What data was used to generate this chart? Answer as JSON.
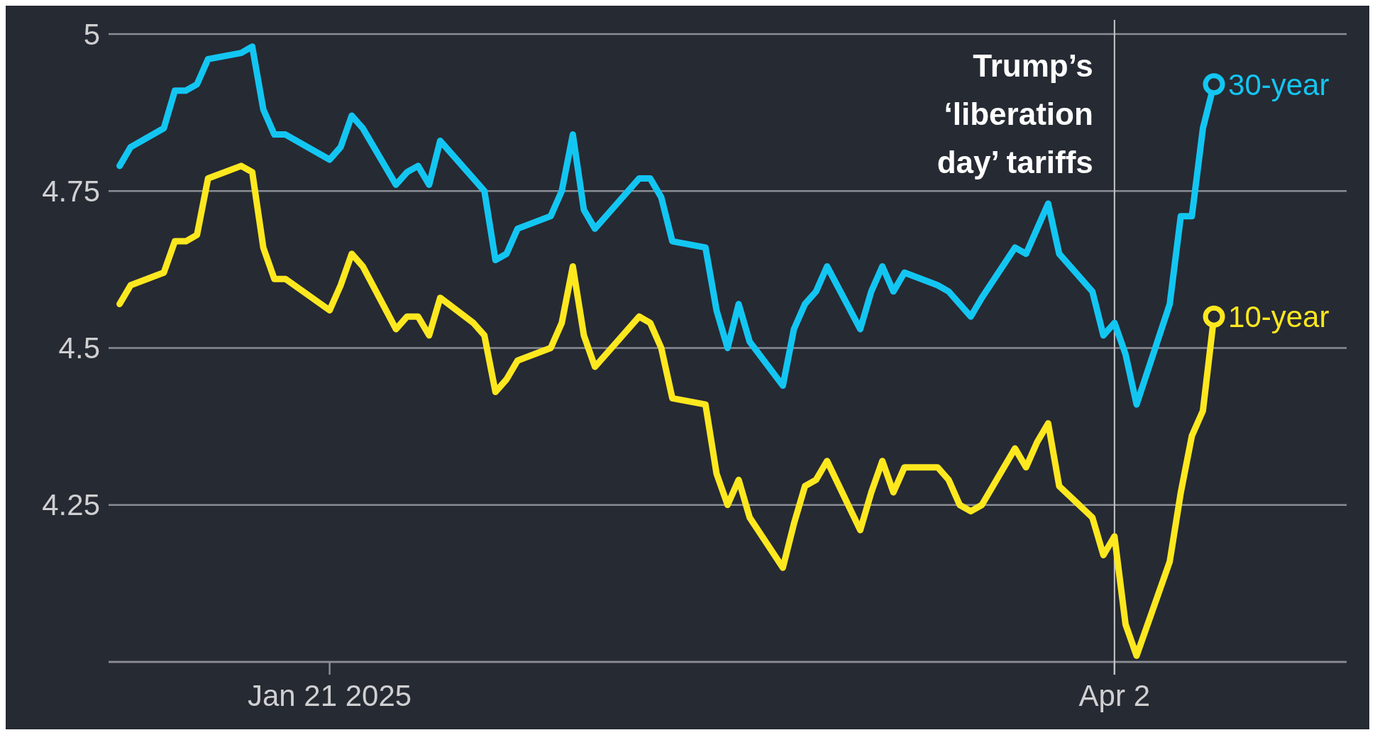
{
  "chart_data": {
    "type": "line",
    "x": [
      "2025-01-02",
      "2025-01-03",
      "2025-01-06",
      "2025-01-07",
      "2025-01-08",
      "2025-01-09",
      "2025-01-10",
      "2025-01-13",
      "2025-01-14",
      "2025-01-15",
      "2025-01-16",
      "2025-01-17",
      "2025-01-21",
      "2025-01-22",
      "2025-01-23",
      "2025-01-24",
      "2025-01-27",
      "2025-01-28",
      "2025-01-29",
      "2025-01-30",
      "2025-01-31",
      "2025-02-03",
      "2025-02-04",
      "2025-02-05",
      "2025-02-06",
      "2025-02-07",
      "2025-02-10",
      "2025-02-11",
      "2025-02-12",
      "2025-02-13",
      "2025-02-14",
      "2025-02-18",
      "2025-02-19",
      "2025-02-20",
      "2025-02-21",
      "2025-02-24",
      "2025-02-25",
      "2025-02-26",
      "2025-02-27",
      "2025-02-28",
      "2025-03-03",
      "2025-03-04",
      "2025-03-05",
      "2025-03-06",
      "2025-03-07",
      "2025-03-10",
      "2025-03-11",
      "2025-03-12",
      "2025-03-13",
      "2025-03-14",
      "2025-03-17",
      "2025-03-18",
      "2025-03-19",
      "2025-03-20",
      "2025-03-21",
      "2025-03-24",
      "2025-03-25",
      "2025-03-26",
      "2025-03-27",
      "2025-03-28",
      "2025-03-31",
      "2025-04-01",
      "2025-04-02",
      "2025-04-03",
      "2025-04-04",
      "2025-04-07",
      "2025-04-08",
      "2025-04-09",
      "2025-04-10",
      "2025-04-11"
    ],
    "series": [
      {
        "name": "30-year",
        "color": "#13c6f2",
        "values": [
          4.79,
          4.82,
          4.85,
          4.91,
          4.91,
          4.92,
          4.96,
          4.97,
          4.98,
          4.88,
          4.84,
          4.84,
          4.8,
          4.82,
          4.87,
          4.85,
          4.76,
          4.78,
          4.79,
          4.76,
          4.83,
          4.77,
          4.75,
          4.64,
          4.65,
          4.69,
          4.71,
          4.75,
          4.84,
          4.72,
          4.69,
          4.77,
          4.77,
          4.74,
          4.67,
          4.66,
          4.56,
          4.5,
          4.57,
          4.51,
          4.44,
          4.53,
          4.57,
          4.59,
          4.63,
          4.53,
          4.59,
          4.63,
          4.59,
          4.62,
          4.6,
          4.59,
          4.57,
          4.55,
          4.58,
          4.66,
          4.65,
          4.69,
          4.73,
          4.65,
          4.59,
          4.52,
          4.54,
          4.49,
          4.41,
          4.57,
          4.71,
          4.71,
          4.85,
          4.92
        ]
      },
      {
        "name": "10-year",
        "color": "#fde81f",
        "values": [
          4.57,
          4.6,
          4.62,
          4.67,
          4.67,
          4.68,
          4.77,
          4.79,
          4.78,
          4.66,
          4.61,
          4.61,
          4.56,
          4.6,
          4.65,
          4.63,
          4.53,
          4.55,
          4.55,
          4.52,
          4.58,
          4.54,
          4.52,
          4.43,
          4.45,
          4.48,
          4.5,
          4.54,
          4.63,
          4.52,
          4.47,
          4.55,
          4.54,
          4.5,
          4.42,
          4.41,
          4.3,
          4.25,
          4.29,
          4.23,
          4.15,
          4.22,
          4.28,
          4.29,
          4.32,
          4.21,
          4.27,
          4.32,
          4.27,
          4.31,
          4.31,
          4.29,
          4.25,
          4.24,
          4.25,
          4.34,
          4.31,
          4.35,
          4.38,
          4.28,
          4.23,
          4.17,
          4.2,
          4.06,
          4.01,
          4.16,
          4.27,
          4.36,
          4.4,
          4.55
        ]
      }
    ],
    "xlim": [
      "2025-01-01",
      "2025-04-23"
    ],
    "xticks": [
      {
        "value": "2025-01-21",
        "label": "Jan 21 2025"
      },
      {
        "value": "2025-04-02",
        "label": "Apr 2"
      }
    ],
    "ylim": [
      4,
      5
    ],
    "yticks": [
      {
        "value": 4,
        "label": null
      },
      4.25,
      4.5,
      4.75,
      5
    ],
    "grid": "y",
    "line_style": "solid",
    "ref_lines": [
      {
        "axis": "x",
        "value": "2025-04-02",
        "label": "Trump’s ‘liberation day’ tariffs",
        "color": "#c8c8c8"
      }
    ]
  }
}
